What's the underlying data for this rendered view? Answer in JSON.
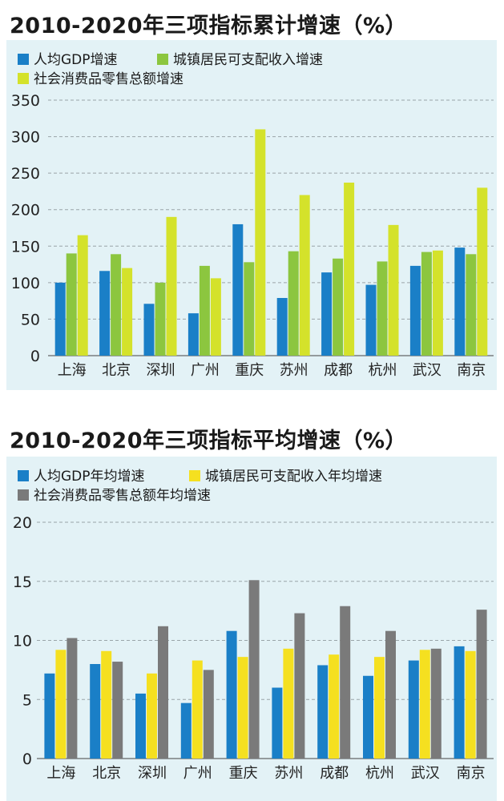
{
  "chart_data": [
    {
      "type": "bar",
      "title": "2010-2020年三项指标累计增速（%）",
      "categories": [
        "上海",
        "北京",
        "深圳",
        "广州",
        "重庆",
        "苏州",
        "成都",
        "杭州",
        "武汉",
        "南京"
      ],
      "series": [
        {
          "name": "人均GDP增速",
          "color": "#1a7fc7",
          "values": [
            100,
            116,
            71,
            58,
            180,
            79,
            114,
            97,
            123,
            148
          ]
        },
        {
          "name": "城镇居民可支配收入增速",
          "color": "#8cc63f",
          "values": [
            140,
            139,
            100,
            123,
            128,
            143,
            133,
            129,
            142,
            139
          ]
        },
        {
          "name": "社会消费品零售总额增速",
          "color": "#d4e22b",
          "values": [
            165,
            120,
            190,
            106,
            310,
            220,
            237,
            179,
            144,
            230
          ]
        }
      ],
      "ylim": [
        0,
        350
      ],
      "yticks": [
        0,
        50,
        100,
        150,
        200,
        250,
        300,
        350
      ],
      "grid": true,
      "legend": "top-left"
    },
    {
      "type": "bar",
      "title": "2010-2020年三项指标平均增速（%）",
      "categories": [
        "上海",
        "北京",
        "深圳",
        "广州",
        "重庆",
        "苏州",
        "成都",
        "杭州",
        "武汉",
        "南京"
      ],
      "series": [
        {
          "name": "人均GDP年均增速",
          "color": "#1a7fc7",
          "values": [
            7.2,
            8.0,
            5.5,
            4.7,
            10.8,
            6.0,
            7.9,
            7.0,
            8.3,
            9.5
          ]
        },
        {
          "name": "城镇居民可支配收入年均增速",
          "color": "#f5e020",
          "values": [
            9.2,
            9.1,
            7.2,
            8.3,
            8.6,
            9.3,
            8.8,
            8.6,
            9.2,
            9.1
          ]
        },
        {
          "name": "社会消费品零售总额年均增速",
          "color": "#7a7a7a",
          "values": [
            10.2,
            8.2,
            11.2,
            7.5,
            15.1,
            12.3,
            12.9,
            10.8,
            9.3,
            12.6
          ]
        }
      ],
      "ylim": [
        0,
        20
      ],
      "yticks": [
        0,
        5,
        10,
        15,
        20
      ],
      "grid": true,
      "legend": "top-left"
    }
  ]
}
